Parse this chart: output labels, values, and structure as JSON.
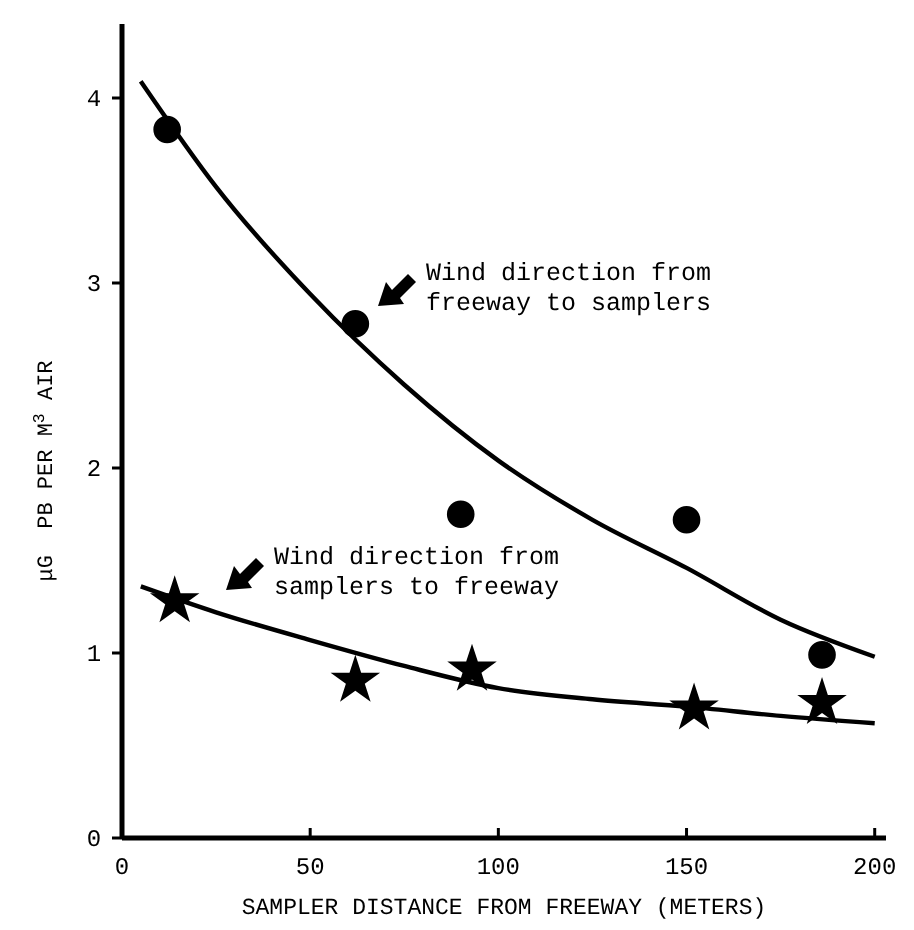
{
  "chart_data": {
    "type": "scatter",
    "xlabel": "SAMPLER DISTANCE FROM FREEWAY (METERS)",
    "ylabel": "μG  PB PER M$^{3}$ AIR",
    "xlim": [
      0,
      203
    ],
    "xticks": [
      0,
      50,
      100,
      150,
      200
    ],
    "ylim": [
      0,
      4.4
    ],
    "yticks": [
      0,
      1,
      2,
      3,
      4
    ],
    "grid": false,
    "series": [
      {
        "type": "line",
        "color": "#000000",
        "marker": "none",
        "line_style": "solid",
        "x": [
          5,
          25,
          50,
          75,
          100,
          125,
          150,
          175,
          200
        ],
        "values": [
          4.09,
          3.52,
          2.94,
          2.45,
          2.04,
          1.72,
          1.46,
          1.18,
          0.98
        ]
      },
      {
        "type": "line",
        "color": "#000000",
        "marker": "none",
        "line_style": "solid",
        "x": [
          5,
          25,
          50,
          75,
          100,
          125,
          150,
          175,
          200
        ],
        "values": [
          1.36,
          1.22,
          1.07,
          0.93,
          0.81,
          0.75,
          0.71,
          0.66,
          0.62
        ]
      },
      {
        "type": "scatter",
        "color": "#000000",
        "marker": "circle",
        "x": [
          12,
          62,
          90,
          150,
          186
        ],
        "values": [
          3.83,
          2.78,
          1.75,
          1.72,
          0.99
        ]
      },
      {
        "type": "scatter",
        "color": "#000000",
        "marker": "star",
        "x": [
          14,
          62,
          93,
          152,
          186
        ],
        "values": [
          1.28,
          0.85,
          0.91,
          0.7,
          0.73
        ]
      }
    ],
    "annotations": [
      "Wind direction from\nfreeway to samplers",
      "Wind direction from\nsamplers to freeway"
    ]
  }
}
